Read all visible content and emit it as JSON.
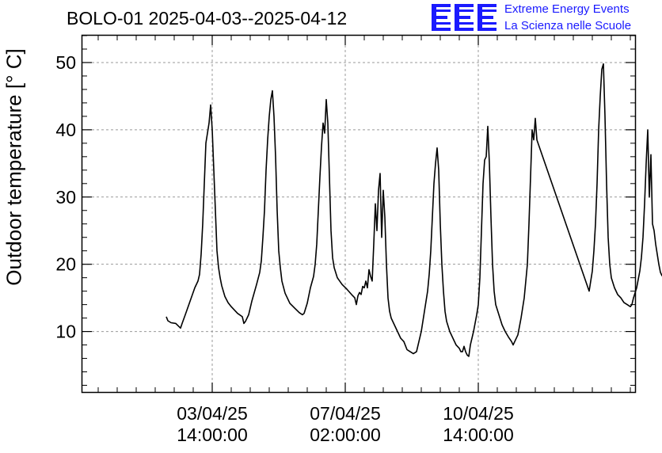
{
  "chart_data": {
    "type": "line",
    "title": "BOLO-01 2025-04-03--2025-04-12",
    "ylabel": "Outdoor temperature [° C]",
    "xlabel": "",
    "ylim": [
      1,
      54
    ],
    "xlim_hours": [
      -68,
      281
    ],
    "grid": true,
    "line_color": "#000000",
    "grid_color": "#999999",
    "y_ticks": [
      "10",
      "20",
      "30",
      "40",
      "50"
    ],
    "y_tick_values": [
      10,
      20,
      30,
      40,
      50
    ],
    "x_tick_labels": [
      {
        "date": "03/04/25",
        "time": "14:00:00"
      },
      {
        "date": "07/04/25",
        "time": "02:00:00"
      },
      {
        "date": "10/04/25",
        "time": "14:00:00"
      }
    ],
    "x_tick_hours": [
      14,
      98,
      182
    ],
    "series": [
      {
        "name": "",
        "points": [
          [
            -15,
            12.2
          ],
          [
            -14,
            11.6
          ],
          [
            -12,
            11.3
          ],
          [
            -9,
            11.2
          ],
          [
            -6,
            10.5
          ],
          [
            -5,
            11.2
          ],
          [
            -3,
            12.5
          ],
          [
            0,
            14.5
          ],
          [
            3,
            16.5
          ],
          [
            5,
            17.5
          ],
          [
            6,
            18.5
          ],
          [
            7,
            21.5
          ],
          [
            8,
            26
          ],
          [
            9,
            32
          ],
          [
            10,
            38
          ],
          [
            12,
            41
          ],
          [
            13,
            43.7
          ],
          [
            14,
            40
          ],
          [
            15,
            34
          ],
          [
            16,
            28
          ],
          [
            17,
            22
          ],
          [
            18,
            19.5
          ],
          [
            19,
            18
          ],
          [
            20,
            16.8
          ],
          [
            22,
            15.2
          ],
          [
            24,
            14.3
          ],
          [
            26,
            13.7
          ],
          [
            30,
            12.7
          ],
          [
            33,
            12.2
          ],
          [
            34,
            11.2
          ],
          [
            35,
            11.5
          ],
          [
            37,
            12.5
          ],
          [
            39,
            14.5
          ],
          [
            42,
            17
          ],
          [
            44,
            18.8
          ],
          [
            45,
            20.5
          ],
          [
            46,
            24
          ],
          [
            47,
            28
          ],
          [
            48,
            34
          ],
          [
            49,
            38.5
          ],
          [
            50,
            42
          ],
          [
            51,
            44.5
          ],
          [
            52,
            45.8
          ],
          [
            53,
            42
          ],
          [
            54,
            36
          ],
          [
            55,
            28
          ],
          [
            56,
            22
          ],
          [
            57,
            19.5
          ],
          [
            58,
            17.5
          ],
          [
            60,
            15.7
          ],
          [
            63,
            14.2
          ],
          [
            66,
            13.5
          ],
          [
            69,
            12.8
          ],
          [
            71,
            12.5
          ],
          [
            72,
            12.7
          ],
          [
            74,
            14.2
          ],
          [
            76,
            16.5
          ],
          [
            78,
            18.2
          ],
          [
            79,
            20
          ],
          [
            80,
            23
          ],
          [
            81,
            28
          ],
          [
            82,
            33
          ],
          [
            83,
            37.5
          ],
          [
            84,
            41
          ],
          [
            85,
            39.5
          ],
          [
            86,
            44.5
          ],
          [
            87,
            41
          ],
          [
            88,
            33
          ],
          [
            89,
            25
          ],
          [
            90,
            21
          ],
          [
            91,
            19.5
          ],
          [
            93,
            18
          ],
          [
            96,
            17
          ],
          [
            99,
            16.3
          ],
          [
            102,
            15.5
          ],
          [
            104,
            15
          ],
          [
            105,
            14
          ],
          [
            106,
            15.3
          ],
          [
            107,
            15.8
          ],
          [
            108,
            15.5
          ],
          [
            109,
            16.7
          ],
          [
            110,
            16.5
          ],
          [
            111,
            17.5
          ],
          [
            112,
            16.5
          ],
          [
            113,
            19.2
          ],
          [
            114,
            18.2
          ],
          [
            115,
            17.5
          ],
          [
            116,
            23
          ],
          [
            117,
            29
          ],
          [
            118,
            25
          ],
          [
            119,
            31
          ],
          [
            120,
            33.5
          ],
          [
            121,
            24
          ],
          [
            122,
            31
          ],
          [
            123,
            27
          ],
          [
            124,
            20
          ],
          [
            125,
            15
          ],
          [
            126,
            13
          ],
          [
            127,
            12
          ],
          [
            129,
            11
          ],
          [
            131,
            10
          ],
          [
            133,
            9
          ],
          [
            135,
            8.5
          ],
          [
            137,
            7.3
          ],
          [
            139,
            7
          ],
          [
            141,
            6.7
          ],
          [
            143,
            7
          ],
          [
            144,
            8
          ],
          [
            146,
            10
          ],
          [
            148,
            13
          ],
          [
            150,
            16
          ],
          [
            151,
            18.5
          ],
          [
            152,
            22
          ],
          [
            153,
            27
          ],
          [
            154,
            32
          ],
          [
            155,
            35
          ],
          [
            156,
            37.3
          ],
          [
            157,
            34
          ],
          [
            158,
            26
          ],
          [
            159,
            20
          ],
          [
            160,
            16
          ],
          [
            161,
            13
          ],
          [
            162,
            11.5
          ],
          [
            164,
            10
          ],
          [
            166,
            9
          ],
          [
            168,
            8
          ],
          [
            170,
            7.5
          ],
          [
            171,
            7
          ],
          [
            172,
            7
          ],
          [
            173,
            7.8
          ],
          [
            174,
            7
          ],
          [
            175,
            6.5
          ],
          [
            176,
            6.3
          ],
          [
            177,
            8
          ],
          [
            179,
            10
          ],
          [
            181,
            12.5
          ],
          [
            182,
            14
          ],
          [
            183,
            18
          ],
          [
            184,
            25
          ],
          [
            185,
            32
          ],
          [
            186,
            35.5
          ],
          [
            187,
            36
          ],
          [
            188,
            40.5
          ],
          [
            189,
            35
          ],
          [
            190,
            27
          ],
          [
            191,
            20
          ],
          [
            192,
            16
          ],
          [
            193,
            14
          ],
          [
            195,
            12.5
          ],
          [
            197,
            11
          ],
          [
            199,
            10
          ],
          [
            201,
            9.2
          ],
          [
            203,
            8.5
          ],
          [
            204,
            8
          ],
          [
            205,
            8.5
          ],
          [
            207,
            9.5
          ],
          [
            209,
            12
          ],
          [
            211,
            15
          ],
          [
            212,
            17.5
          ],
          [
            213,
            20
          ],
          [
            214,
            26
          ],
          [
            215,
            33
          ],
          [
            216,
            40
          ],
          [
            217,
            38.5
          ],
          [
            218,
            41.7
          ],
          [
            219,
            38.5
          ],
          [
            252,
            16
          ],
          [
            253,
            17.5
          ],
          [
            254,
            19
          ],
          [
            255,
            22
          ],
          [
            256,
            26
          ],
          [
            257,
            32
          ],
          [
            258,
            40
          ],
          [
            259,
            45
          ],
          [
            260,
            49
          ],
          [
            261,
            49.8
          ],
          [
            262,
            42
          ],
          [
            263,
            32
          ],
          [
            264,
            24
          ],
          [
            265,
            20
          ],
          [
            266,
            18
          ],
          [
            268,
            16.5
          ],
          [
            270,
            15.5
          ],
          [
            272,
            15
          ],
          [
            274,
            14.3
          ],
          [
            276,
            14
          ],
          [
            278,
            13.7
          ],
          [
            279,
            14
          ],
          [
            280,
            15
          ],
          [
            282,
            16.5
          ],
          [
            284,
            19
          ],
          [
            285,
            21
          ],
          [
            286,
            24
          ],
          [
            287,
            29
          ],
          [
            288,
            35
          ],
          [
            289,
            40
          ],
          [
            290,
            30
          ],
          [
            291,
            36.3
          ],
          [
            292,
            26
          ],
          [
            293,
            25
          ],
          [
            294,
            23
          ],
          [
            296,
            20
          ],
          [
            297,
            18.8
          ],
          [
            298,
            18.3
          ],
          [
            299,
            18.5
          ],
          [
            300,
            18.6
          ]
        ]
      }
    ]
  },
  "logo": {
    "letters": "EEE",
    "line1": "Extreme Energy Events",
    "line2": "La Scienza nelle Scuole",
    "color": "#1a1aff"
  }
}
